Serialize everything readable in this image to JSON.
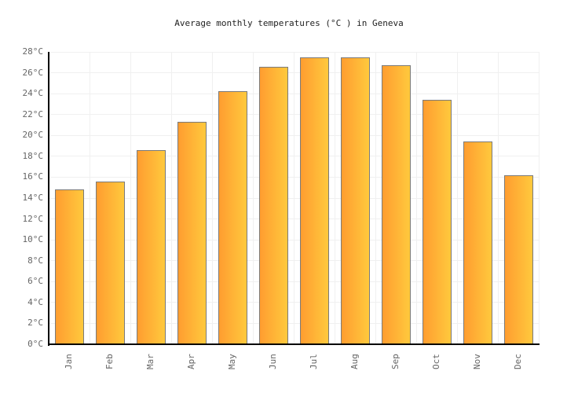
{
  "title": "Average monthly temperatures (°C ) in Geneva",
  "colors": {
    "background": "#ffffff",
    "title_text": "#222222",
    "axis": "#000000",
    "gridline": "#f0f0f0",
    "tick_label": "#666666",
    "bar_gradient_left": "#ff9d30",
    "bar_gradient_right": "#ffc93d",
    "bar_border": "#7a7a7a"
  },
  "chart_data": {
    "type": "bar",
    "title": "Average monthly temperatures (°C ) in Geneva",
    "xlabel": "",
    "ylabel": "",
    "unit": "°C",
    "categories": [
      "Jan",
      "Feb",
      "Mar",
      "Apr",
      "May",
      "Jun",
      "Jul",
      "Aug",
      "Sep",
      "Oct",
      "Nov",
      "Dec"
    ],
    "values": [
      14.8,
      15.6,
      18.6,
      21.3,
      24.2,
      26.6,
      27.5,
      27.5,
      26.7,
      23.4,
      19.4,
      16.2
    ],
    "ylim": [
      0,
      28
    ],
    "ytick_step": 2,
    "ytick_labels": [
      "0°C",
      "2°C",
      "4°C",
      "6°C",
      "8°C",
      "10°C",
      "12°C",
      "14°C",
      "16°C",
      "18°C",
      "20°C",
      "22°C",
      "24°C",
      "26°C",
      "28°C"
    ],
    "grid": true,
    "legend_position": "none",
    "bar_orientation": "vertical",
    "x_label_rotation_deg": -90
  }
}
